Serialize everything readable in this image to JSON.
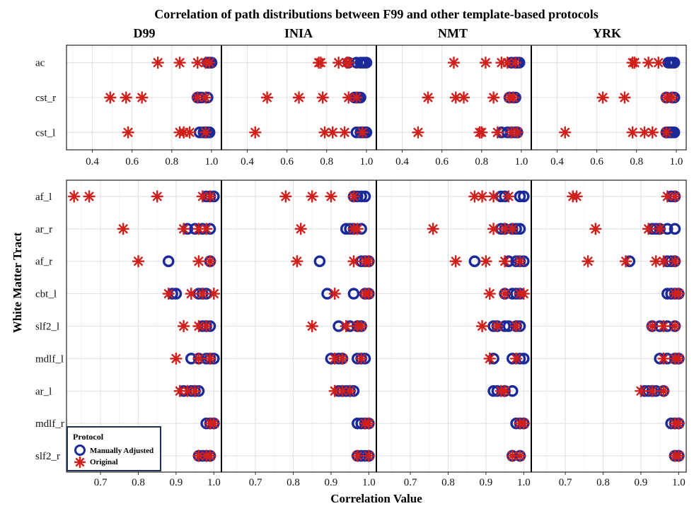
{
  "chart_data": {
    "type": "scatter",
    "title": "Correlation of path distributions between F99 and other template-based protocols",
    "xlabel": "Correlation Value",
    "ylabel": "White Matter Tract",
    "facets": [
      "D99",
      "INIA",
      "NMT",
      "YRK"
    ],
    "legend": {
      "title": "Protocol",
      "entries": [
        "Manually Adjusted",
        "Original"
      ],
      "placement": "bottom-left",
      "colors": {
        "Manually Adjusted": "#1a2a9a",
        "Original": "#d0201c"
      }
    },
    "series": [
      {
        "name": "Manually Adjusted"
      },
      {
        "name": "Original"
      }
    ],
    "panels": [
      {
        "rows": [
          "ac",
          "cst_r",
          "cst_l"
        ],
        "xlim": [
          0.27,
          1.05
        ],
        "xticks": [
          "0.4",
          "0.6",
          "0.8",
          "1.0"
        ],
        "xtick_values": [
          0.4,
          0.6,
          0.8,
          1.0
        ],
        "data": {
          "D99": {
            "ac": {
              "adjusted": [
                0.98,
                0.99,
                1.0
              ],
              "original": [
                0.73,
                0.84,
                0.93,
                0.97,
                0.99
              ]
            },
            "cst_r": {
              "adjusted": [
                0.93,
                0.94,
                0.95,
                0.98
              ],
              "original": [
                0.49,
                0.57,
                0.65,
                0.93,
                0.97
              ]
            },
            "cst_l": {
              "adjusted": [
                0.94,
                0.96,
                0.97,
                0.98,
                0.99
              ],
              "original": [
                0.58,
                0.84,
                0.86,
                0.89,
                0.97
              ]
            }
          },
          "INIA": {
            "ac": {
              "adjusted": [
                0.91,
                0.95,
                0.97,
                0.98,
                0.99,
                1.0
              ],
              "original": [
                0.76,
                0.77,
                0.86,
                0.9,
                0.91
              ]
            },
            "cst_r": {
              "adjusted": [
                0.94,
                0.95,
                0.96,
                0.97
              ],
              "original": [
                0.5,
                0.66,
                0.78,
                0.91,
                0.95
              ]
            },
            "cst_l": {
              "adjusted": [
                0.95,
                0.97,
                0.98,
                0.99,
                1.0
              ],
              "original": [
                0.44,
                0.79,
                0.83,
                0.89,
                0.98
              ]
            }
          },
          "NMT": {
            "ac": {
              "adjusted": [
                0.95,
                0.97,
                0.98,
                0.99
              ],
              "original": [
                0.66,
                0.82,
                0.9,
                0.93,
                0.97
              ]
            },
            "cst_r": {
              "adjusted": [
                0.94,
                0.96,
                0.97
              ],
              "original": [
                0.53,
                0.67,
                0.71,
                0.86,
                0.94,
                0.96
              ]
            },
            "cst_l": {
              "adjusted": [
                0.9,
                0.93,
                0.95,
                0.97,
                0.98
              ],
              "original": [
                0.48,
                0.79,
                0.8,
                0.88,
                0.95,
                0.98
              ]
            }
          },
          "YRK": {
            "ac": {
              "adjusted": [
                0.96,
                0.97,
                0.98,
                0.99
              ],
              "original": [
                0.78,
                0.79,
                0.86,
                0.91
              ]
            },
            "cst_r": {
              "adjusted": [
                0.95,
                0.98,
                0.99
              ],
              "original": [
                0.63,
                0.74,
                0.95,
                0.98
              ]
            },
            "cst_l": {
              "adjusted": [
                0.95,
                0.96,
                0.97,
                0.98,
                0.99
              ],
              "original": [
                0.44,
                0.78,
                0.84,
                0.88,
                0.95
              ]
            }
          }
        }
      },
      {
        "rows": [
          "af_l",
          "ar_r",
          "af_r",
          "cbt_l",
          "slf2_l",
          "mdlf_l",
          "ar_l",
          "mdlf_r",
          "slf2_r"
        ],
        "xlim": [
          0.61,
          1.02
        ],
        "xticks": [
          "0.7",
          "0.8",
          "0.9",
          "1.0"
        ],
        "xtick_values": [
          0.7,
          0.8,
          0.9,
          1.0
        ],
        "data": {
          "D99": {
            "af_l": {
              "adjusted": [
                0.98,
                0.99,
                1.0
              ],
              "original": [
                0.63,
                0.67,
                0.85,
                0.97,
                0.99
              ]
            },
            "ar_r": {
              "adjusted": [
                0.93,
                0.95,
                0.97,
                0.99
              ],
              "original": [
                0.76,
                0.92,
                0.96,
                0.98
              ]
            },
            "af_r": {
              "adjusted": [
                0.88,
                0.99
              ],
              "original": [
                0.8,
                0.96,
                0.99
              ]
            },
            "cbt_l": {
              "adjusted": [
                0.89,
                0.9,
                0.96,
                0.97,
                0.98
              ],
              "original": [
                0.88,
                0.94,
                0.97,
                1.0
              ]
            },
            "slf2_l": {
              "adjusted": [
                0.97,
                0.98,
                0.99
              ],
              "original": [
                0.92,
                0.96,
                0.98
              ]
            },
            "mdlf_l": {
              "adjusted": [
                0.94,
                0.96,
                0.98,
                0.99,
                1.0
              ],
              "original": [
                0.9,
                0.96,
                0.99
              ]
            },
            "ar_l": {
              "adjusted": [
                0.92,
                0.94,
                0.95,
                0.96
              ],
              "original": [
                0.91,
                0.93,
                0.95
              ]
            },
            "mdlf_r": {
              "adjusted": [
                0.98,
                0.99,
                1.0
              ],
              "original": [
                0.99,
                1.0
              ]
            },
            "slf2_r": {
              "adjusted": [
                0.96,
                0.97,
                0.98,
                0.99
              ],
              "original": [
                0.96,
                0.98,
                0.99
              ]
            }
          },
          "INIA": {
            "af_l": {
              "adjusted": [
                0.96,
                0.97,
                0.98,
                0.99
              ],
              "original": [
                0.78,
                0.85,
                0.9,
                0.96
              ]
            },
            "ar_r": {
              "adjusted": [
                0.94,
                0.95,
                0.96,
                0.98
              ],
              "original": [
                0.82,
                0.96,
                0.97
              ]
            },
            "af_r": {
              "adjusted": [
                0.87,
                0.98,
                0.99,
                1.0
              ],
              "original": [
                0.81,
                0.96,
                0.99,
                1.0
              ]
            },
            "cbt_l": {
              "adjusted": [
                0.89,
                0.96,
                0.99,
                1.0
              ],
              "original": [
                0.91,
                0.99,
                1.0
              ]
            },
            "slf2_l": {
              "adjusted": [
                0.92,
                0.95,
                0.97,
                0.98
              ],
              "original": [
                0.85,
                0.94,
                0.97,
                0.98
              ]
            },
            "mdlf_l": {
              "adjusted": [
                0.9,
                0.92,
                0.93,
                0.97,
                0.98,
                0.99
              ],
              "original": [
                0.91,
                0.93,
                0.98
              ]
            },
            "ar_l": {
              "adjusted": [
                0.92,
                0.93,
                0.94,
                0.95,
                0.96
              ],
              "original": [
                0.91,
                0.93,
                0.95
              ]
            },
            "mdlf_r": {
              "adjusted": [
                0.97,
                0.98,
                0.99,
                1.0
              ],
              "original": [
                0.99,
                1.0
              ]
            },
            "slf2_r": {
              "adjusted": [
                0.97,
                0.98,
                0.99,
                1.0
              ],
              "original": [
                0.97,
                1.0
              ]
            }
          },
          "NMT": {
            "af_l": {
              "adjusted": [
                0.94,
                0.95,
                0.99,
                1.0
              ],
              "original": [
                0.87,
                0.89,
                0.92,
                0.96
              ]
            },
            "ar_r": {
              "adjusted": [
                0.94,
                0.95,
                0.97,
                0.98,
                0.99
              ],
              "original": [
                0.76,
                0.92,
                0.95,
                0.97
              ]
            },
            "af_r": {
              "adjusted": [
                0.87,
                0.96,
                0.98,
                0.99,
                1.0
              ],
              "original": [
                0.82,
                0.9,
                0.95,
                0.99
              ]
            },
            "cbt_l": {
              "adjusted": [
                0.95,
                0.97,
                0.98,
                0.99
              ],
              "original": [
                0.91,
                0.95,
                0.99,
                1.0
              ]
            },
            "slf2_l": {
              "adjusted": [
                0.92,
                0.93,
                0.95,
                0.96,
                0.98,
                0.99
              ],
              "original": [
                0.89,
                0.93,
                0.98
              ]
            },
            "mdlf_l": {
              "adjusted": [
                0.92,
                0.97,
                0.99,
                1.0
              ],
              "original": [
                0.91,
                0.98
              ]
            },
            "ar_l": {
              "adjusted": [
                0.92,
                0.93,
                0.95,
                0.97
              ],
              "original": [
                0.94,
                0.95
              ]
            },
            "mdlf_r": {
              "adjusted": [
                0.98,
                0.99,
                1.0
              ],
              "original": [
                0.99,
                1.0
              ]
            },
            "slf2_r": {
              "adjusted": [
                0.97,
                0.99
              ],
              "original": [
                0.97,
                0.99
              ]
            }
          },
          "YRK": {
            "af_l": {
              "adjusted": [
                0.98,
                0.99
              ],
              "original": [
                0.72,
                0.73,
                0.97,
                0.99
              ]
            },
            "ar_r": {
              "adjusted": [
                0.93,
                0.94,
                0.95,
                0.97,
                0.99
              ],
              "original": [
                0.78,
                0.92,
                0.95
              ]
            },
            "af_r": {
              "adjusted": [
                0.87,
                0.97,
                0.98,
                0.99
              ],
              "original": [
                0.76,
                0.86,
                0.94,
                0.96,
                0.99
              ]
            },
            "cbt_l": {
              "adjusted": [
                0.97,
                0.98,
                0.99,
                1.0
              ],
              "original": [
                0.99,
                1.0
              ]
            },
            "slf2_l": {
              "adjusted": [
                0.93,
                0.95,
                0.97,
                0.99
              ],
              "original": [
                0.93,
                0.96,
                0.99
              ]
            },
            "mdlf_l": {
              "adjusted": [
                0.95,
                0.97,
                0.99,
                1.0
              ],
              "original": [
                0.96,
                0.99,
                1.0
              ]
            },
            "ar_l": {
              "adjusted": [
                0.91,
                0.92,
                0.93,
                0.94,
                0.96
              ],
              "original": [
                0.9,
                0.93,
                0.96
              ]
            },
            "mdlf_r": {
              "adjusted": [
                0.98,
                0.99,
                1.0
              ],
              "original": [
                0.99,
                1.0
              ]
            },
            "slf2_r": {
              "adjusted": [
                0.99,
                1.0
              ],
              "original": [
                0.99,
                1.0
              ]
            }
          }
        }
      }
    ]
  }
}
